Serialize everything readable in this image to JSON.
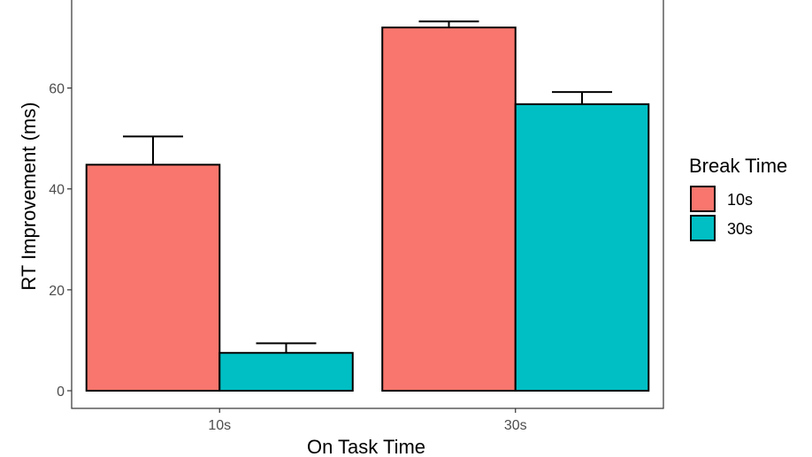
{
  "chart_data": {
    "type": "bar",
    "categories": [
      "10s",
      "30s"
    ],
    "series": [
      {
        "name": "10s",
        "color": "#F8766D",
        "values": [
          44.8,
          72.0
        ],
        "error": [
          5.6,
          1.2
        ]
      },
      {
        "name": "30s",
        "color": "#00BFC4",
        "values": [
          7.5,
          56.8
        ],
        "error": [
          1.9,
          2.4
        ]
      }
    ],
    "xlabel": "On Task Time",
    "ylabel": "RT Improvement (ms)",
    "ylim": [
      -3.5,
      78.5
    ],
    "yticks": [
      "0",
      "20",
      "40",
      "60"
    ],
    "legend": {
      "title": "Break Time",
      "entries": [
        "10s",
        "30s"
      ],
      "position": "right"
    },
    "grid": false
  }
}
